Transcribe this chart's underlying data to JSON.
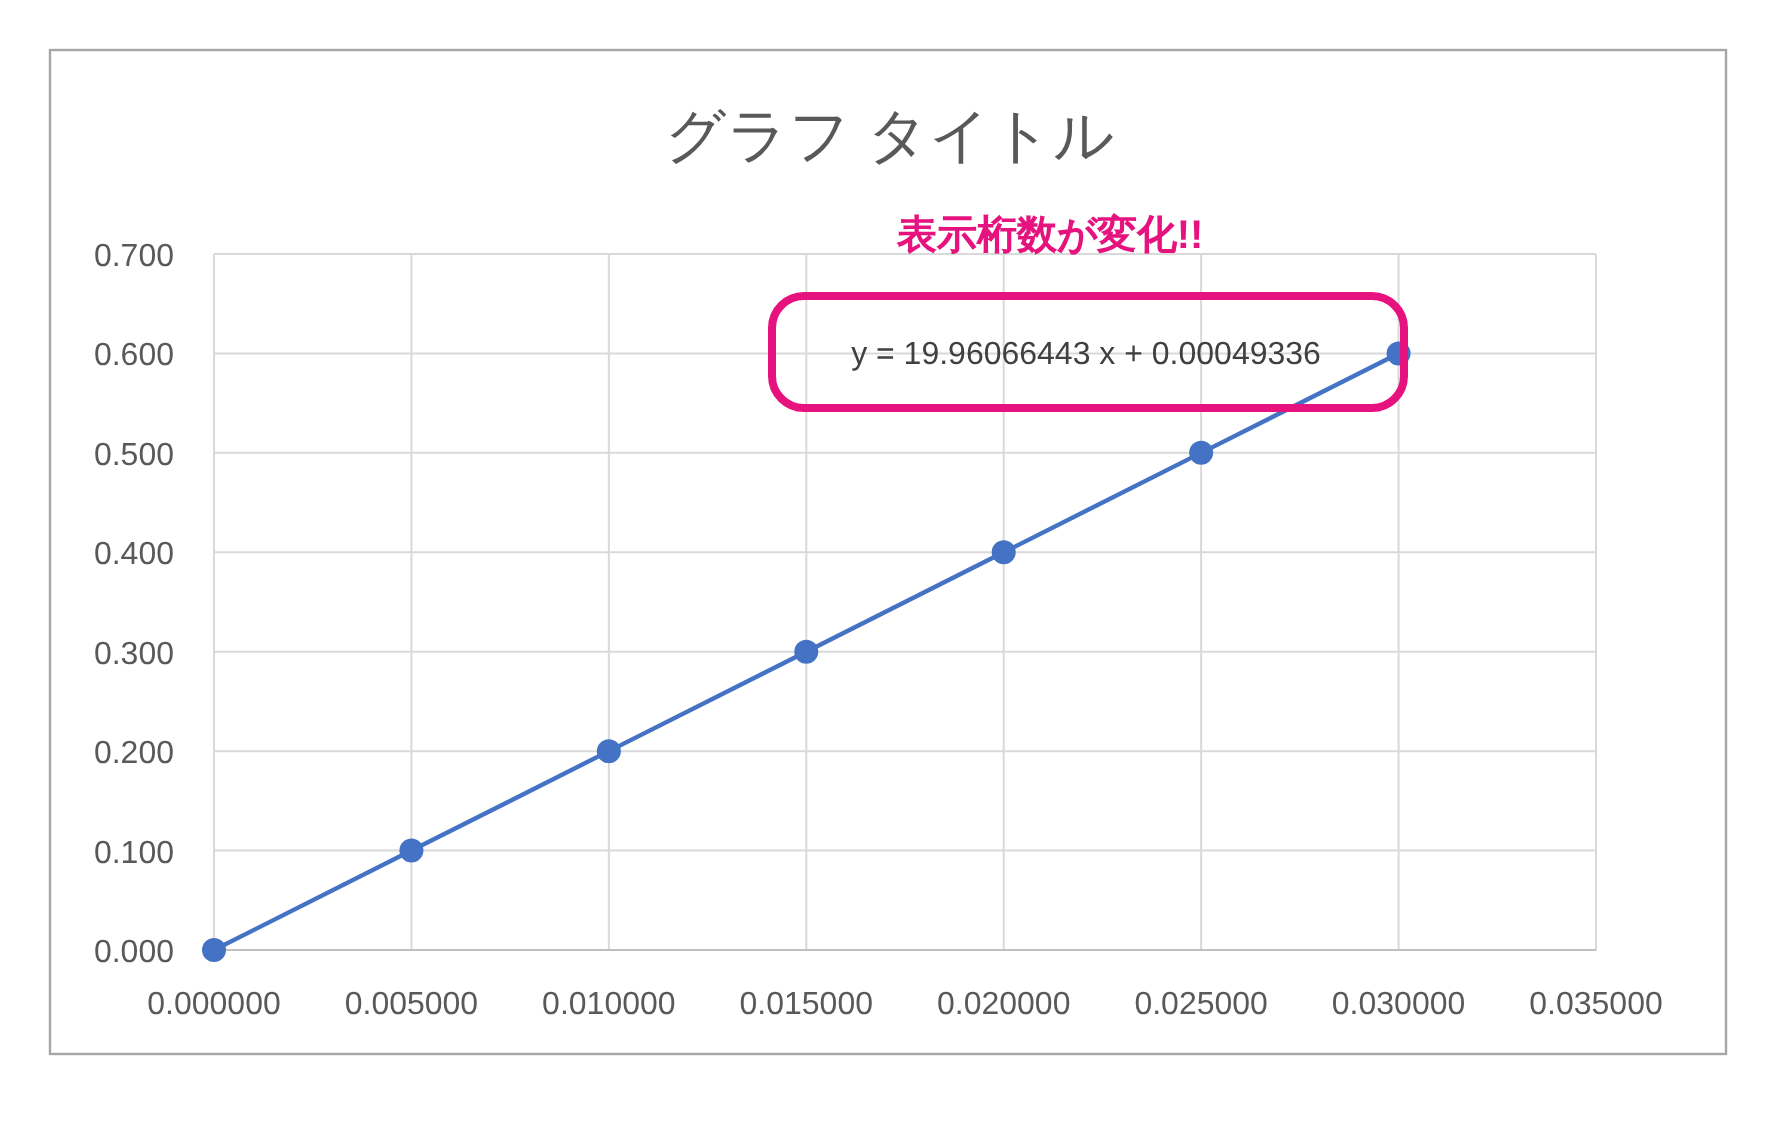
{
  "chart_data": {
    "type": "line",
    "title": "グラフ タイトル",
    "x": [
      0,
      0.005,
      0.01,
      0.015,
      0.02,
      0.025,
      0.03
    ],
    "series": [
      {
        "color": "#4472c4",
        "values": [
          0,
          0.1,
          0.2,
          0.3,
          0.4,
          0.5,
          0.6
        ]
      }
    ],
    "xlim": [
      0,
      0.035
    ],
    "xticks": [
      {
        "value": 0,
        "label": "0.000000"
      },
      {
        "value": 0.005,
        "label": "0.005000"
      },
      {
        "value": 0.01,
        "label": "0.010000"
      },
      {
        "value": 0.015,
        "label": "0.015000"
      },
      {
        "value": 0.02,
        "label": "0.020000"
      },
      {
        "value": 0.025,
        "label": "0.025000"
      },
      {
        "value": 0.03,
        "label": "0.030000"
      },
      {
        "value": 0.035,
        "label": "0.035000"
      }
    ],
    "ylim": [
      0,
      0.7
    ],
    "yticks": [
      {
        "value": 0,
        "label": "0.000"
      },
      {
        "value": 0.1,
        "label": "0.100"
      },
      {
        "value": 0.2,
        "label": "0.200"
      },
      {
        "value": 0.3,
        "label": "0.300"
      },
      {
        "value": 0.4,
        "label": "0.400"
      },
      {
        "value": 0.5,
        "label": "0.500"
      },
      {
        "value": 0.6,
        "label": "0.600"
      },
      {
        "value": 0.7,
        "label": "0.700"
      }
    ],
    "grid": true,
    "marker": "circle",
    "line_style": "solid",
    "annotations": [
      "y = 19.96066443 x + 0.00049336",
      "表示桁数が変化!!"
    ]
  }
}
